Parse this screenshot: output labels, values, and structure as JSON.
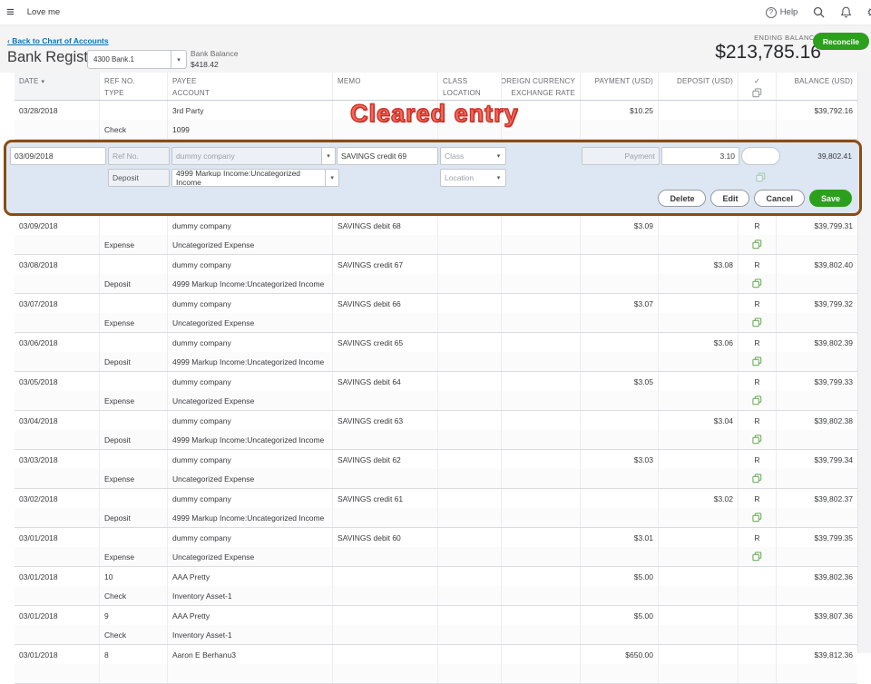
{
  "topbar": {
    "app_title": "Love me",
    "help_label": "Help",
    "qmark": "?"
  },
  "header": {
    "back_link": "‹ Back to Chart of Accounts",
    "title": "Bank Register",
    "account_selector_value": "4300 Bank.1",
    "bank_balance_label": "Bank Balance",
    "bank_balance_value": "$418.42",
    "ending_balance_label": "ENDING BALANCE",
    "ending_balance_value": "$213,785.16",
    "reconcile_label": "Reconcile"
  },
  "annotation": {
    "text": "Cleared entry",
    "color": "#e0402f"
  },
  "table": {
    "headers": {
      "date": "DATE",
      "sort_indicator": "▾",
      "ref": "REF NO.",
      "type": "TYPE",
      "payee": "PAYEE",
      "account": "ACCOUNT",
      "memo": "MEMO",
      "class": "CLASS",
      "location": "LOCATION",
      "foreign_currency": "FOREIGN CURRENCY",
      "exchange_rate": "EXCHANGE RATE",
      "payment": "PAYMENT (USD)",
      "deposit": "DEPOSIT (USD)",
      "check": "✓",
      "balance": "BALANCE (USD)"
    },
    "rows_pre": [
      {
        "date": "03/28/2018",
        "ref": "",
        "type": "Check",
        "payee": "3rd Party",
        "account": "1099",
        "memo": "",
        "payment": "$10.25",
        "deposit": "",
        "cleared": "",
        "copy": false,
        "balance": "$39,792.16"
      }
    ],
    "rows_post": [
      {
        "date": "03/09/2018",
        "ref": "",
        "type": "Expense",
        "payee": "dummy company",
        "account": "Uncategorized Expense",
        "memo": "SAVINGS debit 68",
        "payment": "$3.09",
        "deposit": "",
        "cleared": "R",
        "copy": true,
        "balance": "$39,799.31"
      },
      {
        "date": "03/08/2018",
        "ref": "",
        "type": "Deposit",
        "payee": "dummy company",
        "account": "4999 Markup Income:Uncategorized Income",
        "memo": "SAVINGS credit 67",
        "payment": "",
        "deposit": "$3.08",
        "cleared": "R",
        "copy": true,
        "balance": "$39,802.40"
      },
      {
        "date": "03/07/2018",
        "ref": "",
        "type": "Expense",
        "payee": "dummy company",
        "account": "Uncategorized Expense",
        "memo": "SAVINGS debit 66",
        "payment": "$3.07",
        "deposit": "",
        "cleared": "R",
        "copy": true,
        "balance": "$39,799.32"
      },
      {
        "date": "03/06/2018",
        "ref": "",
        "type": "Deposit",
        "payee": "dummy company",
        "account": "4999 Markup Income:Uncategorized Income",
        "memo": "SAVINGS credit 65",
        "payment": "",
        "deposit": "$3.06",
        "cleared": "R",
        "copy": true,
        "balance": "$39,802.39"
      },
      {
        "date": "03/05/2018",
        "ref": "",
        "type": "Expense",
        "payee": "dummy company",
        "account": "Uncategorized Expense",
        "memo": "SAVINGS debit 64",
        "payment": "$3.05",
        "deposit": "",
        "cleared": "R",
        "copy": true,
        "balance": "$39,799.33"
      },
      {
        "date": "03/04/2018",
        "ref": "",
        "type": "Deposit",
        "payee": "dummy company",
        "account": "4999 Markup Income:Uncategorized Income",
        "memo": "SAVINGS credit 63",
        "payment": "",
        "deposit": "$3.04",
        "cleared": "R",
        "copy": true,
        "balance": "$39,802.38"
      },
      {
        "date": "03/03/2018",
        "ref": "",
        "type": "Expense",
        "payee": "dummy company",
        "account": "Uncategorized Expense",
        "memo": "SAVINGS debit 62",
        "payment": "$3.03",
        "deposit": "",
        "cleared": "R",
        "copy": true,
        "balance": "$39,799.34"
      },
      {
        "date": "03/02/2018",
        "ref": "",
        "type": "Deposit",
        "payee": "dummy company",
        "account": "4999 Markup Income:Uncategorized Income",
        "memo": "SAVINGS credit 61",
        "payment": "",
        "deposit": "$3.02",
        "cleared": "R",
        "copy": true,
        "balance": "$39,802.37"
      },
      {
        "date": "03/01/2018",
        "ref": "",
        "type": "Expense",
        "payee": "dummy company",
        "account": "Uncategorized Expense",
        "memo": "SAVINGS debit 60",
        "payment": "$3.01",
        "deposit": "",
        "cleared": "R",
        "copy": true,
        "balance": "$39,799.35"
      },
      {
        "date": "03/01/2018",
        "ref": "10",
        "type": "Check",
        "payee": "AAA Pretty",
        "account": "Inventory Asset-1",
        "memo": "",
        "payment": "$5.00",
        "deposit": "",
        "cleared": "",
        "copy": false,
        "balance": "$39,802.36"
      },
      {
        "date": "03/01/2018",
        "ref": "9",
        "type": "Check",
        "payee": "AAA Pretty",
        "account": "Inventory Asset-1",
        "memo": "",
        "payment": "$5.00",
        "deposit": "",
        "cleared": "",
        "copy": false,
        "balance": "$39,807.36"
      },
      {
        "date": "03/01/2018",
        "ref": "8",
        "type": "",
        "payee": "Aaron E Berhanu3",
        "account": "",
        "memo": "",
        "payment": "$650.00",
        "deposit": "",
        "cleared": "",
        "copy": false,
        "balance": "$39,812.36"
      }
    ]
  },
  "edit_row": {
    "date": "03/09/2018",
    "ref_placeholder": "Ref No.",
    "payee": "dummy company",
    "memo": "SAVINGS credit 69",
    "class_placeholder": "Class",
    "type": "Deposit",
    "account": "4999 Markup Income:Uncategorized Income",
    "location_placeholder": "Location",
    "payment_placeholder": "Payment",
    "deposit_value": "3.10",
    "balance": "39,802.41",
    "buttons": {
      "delete": "Delete",
      "edit": "Edit",
      "cancel": "Cancel",
      "save": "Save"
    },
    "dropdown_arrow": "▾"
  },
  "colors": {
    "accent_green": "#2ca01c",
    "link_blue": "#0876b5",
    "edit_highlight": "#dce7f3",
    "annotation_border": "#8a4c12",
    "copy_icon_green": "#6fae5c"
  }
}
